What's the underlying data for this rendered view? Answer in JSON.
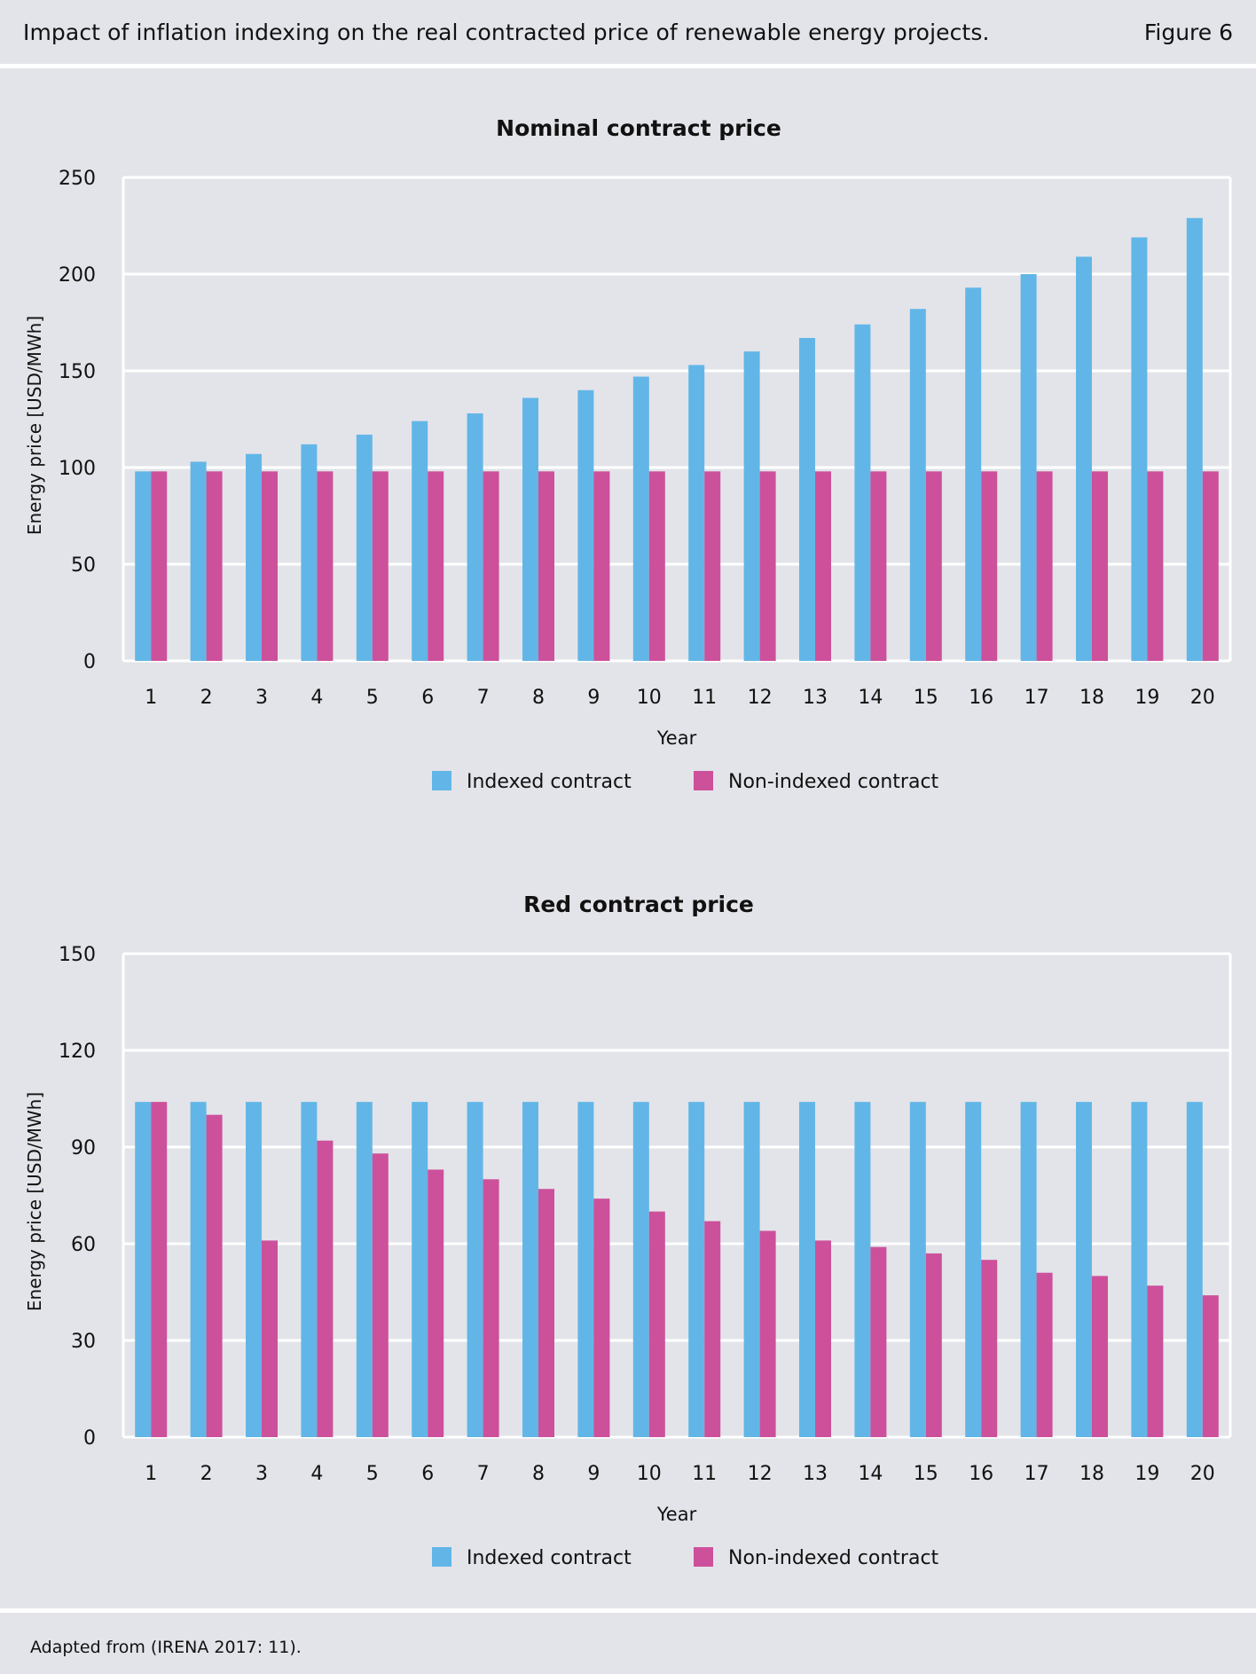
{
  "header": {
    "title": "Impact of inflation indexing on the real contracted price of renewable energy projects.",
    "figure_label": "Figure 6"
  },
  "footer": {
    "source": "Adapted from (IRENA 2017: 11)."
  },
  "colors": {
    "background": "#e3e4e9",
    "indexed": "#62b6e7",
    "non_indexed": "#cd509b",
    "grid": "#ffffff"
  },
  "chart_data": [
    {
      "type": "bar",
      "title": "Nominal contract price",
      "xlabel": "Year",
      "ylabel": "Energy price [USD/MWh]",
      "ylim": [
        0,
        250
      ],
      "yticks": [
        0,
        50,
        100,
        150,
        200,
        250
      ],
      "grid": true,
      "legend_position": "bottom-center",
      "categories": [
        "1",
        "2",
        "3",
        "4",
        "5",
        "6",
        "7",
        "8",
        "9",
        "10",
        "11",
        "12",
        "13",
        "14",
        "15",
        "16",
        "17",
        "18",
        "19",
        "20"
      ],
      "series": [
        {
          "name": "Indexed contract",
          "color": "#62b6e7",
          "values": [
            98,
            103,
            107,
            112,
            117,
            124,
            128,
            136,
            140,
            147,
            153,
            160,
            167,
            174,
            182,
            193,
            200,
            209,
            219,
            229
          ]
        },
        {
          "name": "Non-indexed contract",
          "color": "#cd509b",
          "values": [
            98,
            98,
            98,
            98,
            98,
            98,
            98,
            98,
            98,
            98,
            98,
            98,
            98,
            98,
            98,
            98,
            98,
            98,
            98,
            98
          ]
        }
      ]
    },
    {
      "type": "bar",
      "title": "Red contract price",
      "xlabel": "Year",
      "ylabel": "Energy price [USD/MWh]",
      "ylim": [
        0,
        150
      ],
      "yticks": [
        0,
        30,
        60,
        90,
        120,
        150
      ],
      "grid": true,
      "legend_position": "bottom-center",
      "categories": [
        "1",
        "2",
        "3",
        "4",
        "5",
        "6",
        "7",
        "8",
        "9",
        "10",
        "11",
        "12",
        "13",
        "14",
        "15",
        "16",
        "17",
        "18",
        "19",
        "20"
      ],
      "series": [
        {
          "name": "Indexed contract",
          "color": "#62b6e7",
          "values": [
            104,
            104,
            104,
            104,
            104,
            104,
            104,
            104,
            104,
            104,
            104,
            104,
            104,
            104,
            104,
            104,
            104,
            104,
            104,
            104
          ]
        },
        {
          "name": "Non-indexed contract",
          "color": "#cd509b",
          "values": [
            104,
            100,
            61,
            92,
            88,
            83,
            80,
            77,
            74,
            70,
            67,
            64,
            61,
            59,
            57,
            55,
            51,
            50,
            47,
            44
          ]
        }
      ]
    }
  ]
}
